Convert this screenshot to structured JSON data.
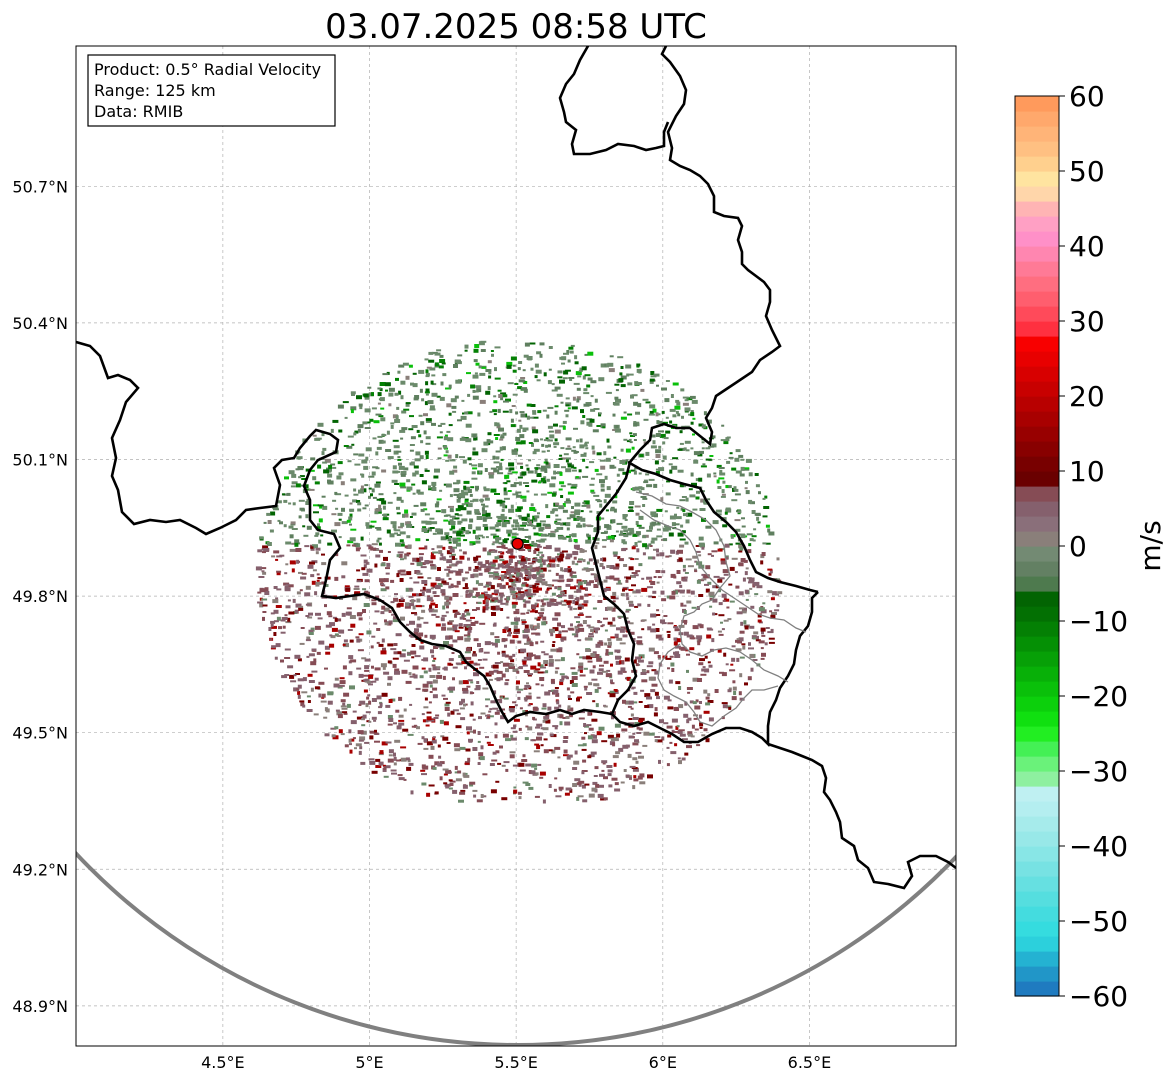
{
  "title": "03.07.2025 08:58 UTC",
  "info_box": {
    "lines": [
      "Product: 0.5° Radial Velocity",
      "Range: 125 km",
      "Data: RMIB"
    ]
  },
  "colorbar": {
    "unit": "m/s",
    "min": -60,
    "max": 60,
    "ticks": [
      {
        "value": 60,
        "label": "60"
      },
      {
        "value": 50,
        "label": "50"
      },
      {
        "value": 40,
        "label": "40"
      },
      {
        "value": 30,
        "label": "30"
      },
      {
        "value": 20,
        "label": "20"
      },
      {
        "value": 10,
        "label": "10"
      },
      {
        "value": 0,
        "label": "0"
      },
      {
        "value": -10,
        "label": "−10"
      },
      {
        "value": -20,
        "label": "−20"
      },
      {
        "value": -30,
        "label": "−30"
      },
      {
        "value": -40,
        "label": "−40"
      },
      {
        "value": -50,
        "label": "−50"
      },
      {
        "value": -60,
        "label": "−60"
      }
    ],
    "colors": [
      {
        "from": -60,
        "to": -58,
        "color": "#1f7bc0"
      },
      {
        "from": -58,
        "to": -56,
        "color": "#2196c8"
      },
      {
        "from": -56,
        "to": -54,
        "color": "#24b2d2"
      },
      {
        "from": -54,
        "to": -52,
        "color": "#2cd0dc"
      },
      {
        "from": -52,
        "to": -50,
        "color": "#35dcdf"
      },
      {
        "from": -50,
        "to": -48,
        "color": "#44dcdf"
      },
      {
        "from": -48,
        "to": -46,
        "color": "#55dedf"
      },
      {
        "from": -46,
        "to": -44,
        "color": "#66e0e1"
      },
      {
        "from": -44,
        "to": -42,
        "color": "#77e2e3"
      },
      {
        "from": -42,
        "to": -40,
        "color": "#88e6e6"
      },
      {
        "from": -40,
        "to": -38,
        "color": "#98e8e8"
      },
      {
        "from": -38,
        "to": -36,
        "color": "#a6ebeb"
      },
      {
        "from": -36,
        "to": -34,
        "color": "#b4eef0"
      },
      {
        "from": -34,
        "to": -32,
        "color": "#bff0f2"
      },
      {
        "from": -32,
        "to": -30,
        "color": "#8ef0a0"
      },
      {
        "from": -30,
        "to": -28,
        "color": "#6af27a"
      },
      {
        "from": -28,
        "to": -26,
        "color": "#44f055"
      },
      {
        "from": -26,
        "to": -24,
        "color": "#22ee22"
      },
      {
        "from": -24,
        "to": -22,
        "color": "#10e010"
      },
      {
        "from": -22,
        "to": -20,
        "color": "#0cd00c"
      },
      {
        "from": -20,
        "to": -18,
        "color": "#0ac00a"
      },
      {
        "from": -18,
        "to": -16,
        "color": "#08b008"
      },
      {
        "from": -16,
        "to": -14,
        "color": "#07a007"
      },
      {
        "from": -14,
        "to": -12,
        "color": "#059005"
      },
      {
        "from": -12,
        "to": -10,
        "color": "#048004"
      },
      {
        "from": -10,
        "to": -8,
        "color": "#037003"
      },
      {
        "from": -8,
        "to": -6,
        "color": "#026402"
      },
      {
        "from": -6,
        "to": -4,
        "color": "#4e7a4e"
      },
      {
        "from": -4,
        "to": -2,
        "color": "#638063"
      },
      {
        "from": -2,
        "to": 0,
        "color": "#738a73"
      },
      {
        "from": 0,
        "to": 2,
        "color": "#8a7f7a"
      },
      {
        "from": 2,
        "to": 4,
        "color": "#8a6f7a"
      },
      {
        "from": 4,
        "to": 6,
        "color": "#85606d"
      },
      {
        "from": 6,
        "to": 8,
        "color": "#864c55"
      },
      {
        "from": 8,
        "to": 10,
        "color": "#6a0000"
      },
      {
        "from": 10,
        "to": 12,
        "color": "#780000"
      },
      {
        "from": 12,
        "to": 14,
        "color": "#880000"
      },
      {
        "from": 14,
        "to": 16,
        "color": "#980000"
      },
      {
        "from": 16,
        "to": 18,
        "color": "#a80000"
      },
      {
        "from": 18,
        "to": 20,
        "color": "#b80000"
      },
      {
        "from": 20,
        "to": 22,
        "color": "#c80000"
      },
      {
        "from": 22,
        "to": 24,
        "color": "#d80000"
      },
      {
        "from": 24,
        "to": 26,
        "color": "#e80000"
      },
      {
        "from": 26,
        "to": 28,
        "color": "#f80000"
      },
      {
        "from": 28,
        "to": 30,
        "color": "#ff3040"
      },
      {
        "from": 30,
        "to": 32,
        "color": "#ff4a5a"
      },
      {
        "from": 32,
        "to": 34,
        "color": "#ff5e6e"
      },
      {
        "from": 34,
        "to": 36,
        "color": "#ff6e80"
      },
      {
        "from": 36,
        "to": 38,
        "color": "#ff7a96"
      },
      {
        "from": 38,
        "to": 40,
        "color": "#ff86b0"
      },
      {
        "from": 40,
        "to": 42,
        "color": "#ff90c8"
      },
      {
        "from": 42,
        "to": 44,
        "color": "#ffa0c4"
      },
      {
        "from": 44,
        "to": 46,
        "color": "#ffb4b4"
      },
      {
        "from": 46,
        "to": 48,
        "color": "#ffd6aa"
      },
      {
        "from": 48,
        "to": 50,
        "color": "#ffe4a0"
      },
      {
        "from": 50,
        "to": 52,
        "color": "#ffd08e"
      },
      {
        "from": 52,
        "to": 54,
        "color": "#ffc082"
      },
      {
        "from": 54,
        "to": 56,
        "color": "#ffb478"
      },
      {
        "from": 56,
        "to": 58,
        "color": "#ffa86c"
      },
      {
        "from": 58,
        "to": 60,
        "color": "#ff9a5c"
      }
    ]
  },
  "map": {
    "lon_range": [
      4.0,
      7.0
    ],
    "lat_range": [
      48.8,
      51.0
    ],
    "lon_ticks": [
      {
        "value": 4.5,
        "label": "4.5°E"
      },
      {
        "value": 5.0,
        "label": "5°E"
      },
      {
        "value": 5.5,
        "label": "5.5°E"
      },
      {
        "value": 6.0,
        "label": "6°E"
      },
      {
        "value": 6.5,
        "label": "6.5°E"
      }
    ],
    "lat_ticks": [
      {
        "value": 50.7,
        "label": "50.7°N"
      },
      {
        "value": 50.4,
        "label": "50.4°N"
      },
      {
        "value": 50.1,
        "label": "50.1°N"
      },
      {
        "value": 49.8,
        "label": "49.8°N"
      },
      {
        "value": 49.5,
        "label": "49.5°N"
      },
      {
        "value": 49.2,
        "label": "49.2°N"
      },
      {
        "value": 48.9,
        "label": "48.9°N"
      }
    ],
    "radar_site": {
      "lon": 5.505,
      "lat": 49.915,
      "color": "#e60000"
    },
    "range_ring": {
      "color": "#808080"
    },
    "border_color": "#000000",
    "region_line_color": "#808080",
    "echo_colors": [
      "#6b8a6b",
      "#5f7f5f",
      "#8a7f7a",
      "#85606d",
      "#864c55",
      "#026402",
      "#048004",
      "#0ac00a",
      "#22ee22",
      "#780000",
      "#a80000"
    ]
  }
}
